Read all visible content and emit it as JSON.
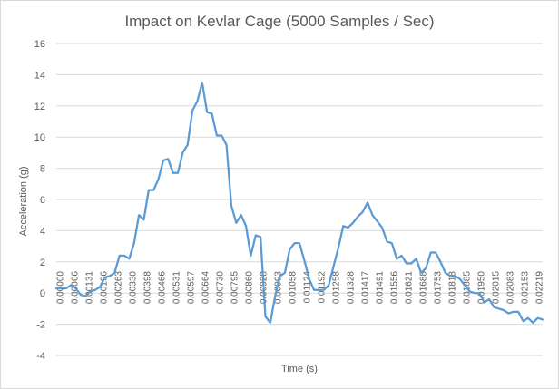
{
  "chart_data": {
    "type": "line",
    "title": "Impact on Kevlar Cage (5000 Samples / Sec)",
    "xlabel": "Time (s)",
    "ylabel": "Acceleration (g)",
    "ylim": [
      -4,
      16
    ],
    "yticks": [
      -4,
      -2,
      0,
      2,
      4,
      6,
      8,
      10,
      12,
      14,
      16
    ],
    "grid": true,
    "legend": "none",
    "line_color": "#5b9bd5",
    "x_tick_labels": [
      "0.00000",
      "0.00066",
      "0.00131",
      "0.00196",
      "0.00263",
      "0.00330",
      "0.00398",
      "0.00466",
      "0.00531",
      "0.00597",
      "0.00664",
      "0.00730",
      "0.00795",
      "0.00860",
      "0.00928",
      "0.00993",
      "0.01058",
      "0.01124",
      "0.01192",
      "0.01258",
      "0.01328",
      "0.01417",
      "0.01491",
      "0.01556",
      "0.01621",
      "0.01688",
      "0.01753",
      "0.01818",
      "0.01885",
      "0.01950",
      "0.02015",
      "0.02083",
      "0.02153",
      "0.02219"
    ],
    "series": [
      {
        "values": [
          0.3,
          0.3,
          0.3,
          0.5,
          0.3,
          -0.1,
          -0.2,
          0.1,
          0.2,
          0.4,
          1.0,
          1.1,
          1.3,
          2.4,
          2.4,
          2.2,
          3.2,
          5.0,
          4.7,
          6.6,
          6.6,
          7.3,
          8.5,
          8.6,
          7.7,
          7.7,
          9.0,
          9.5,
          11.7,
          12.3,
          13.5,
          11.6,
          11.5,
          10.1,
          10.1,
          9.5,
          5.6,
          4.5,
          5.0,
          4.3,
          2.4,
          3.7,
          3.6,
          -1.5,
          -1.9,
          -0.2,
          1.1,
          1.3,
          2.8,
          3.2,
          3.2,
          2.1,
          0.9,
          0.2,
          0.2,
          0.2,
          0.5,
          1.7,
          2.9,
          4.3,
          4.2,
          4.5,
          4.9,
          5.2,
          5.8,
          5.0,
          4.6,
          4.2,
          3.3,
          3.2,
          2.2,
          2.4,
          1.9,
          1.9,
          2.2,
          1.3,
          1.6,
          2.6,
          2.6,
          2.0,
          1.3,
          1.1,
          1.1,
          0.9,
          0.5,
          0.1,
          0.0,
          0.0,
          -0.6,
          -0.4,
          -0.9,
          -1.0,
          -1.1,
          -1.3,
          -1.2,
          -1.2,
          -1.8,
          -1.6,
          -1.9,
          -1.6,
          -1.7
        ]
      }
    ]
  }
}
